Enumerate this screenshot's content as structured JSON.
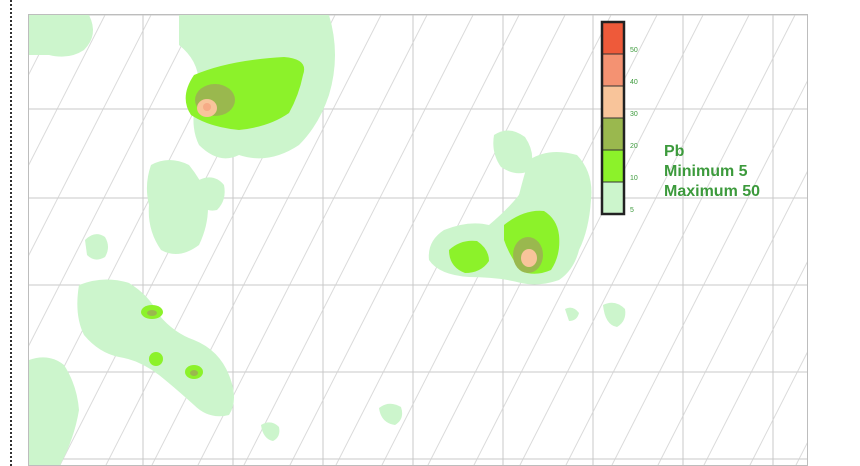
{
  "legend": {
    "title": "Pb",
    "minimum_text": "Minimum 5",
    "maximum_text": "Maximum 50",
    "levels": [
      {
        "value": "50",
        "color": "#ee5a3a"
      },
      {
        "value": "40",
        "color": "#f49272"
      },
      {
        "value": "30",
        "color": "#f8c49a"
      },
      {
        "value": "20",
        "color": "#9ab84e"
      },
      {
        "value": "10",
        "color": "#8cf22a"
      },
      {
        "value": "5",
        "color": "#ccf5cc"
      }
    ]
  },
  "colors": {
    "base_area": "#ccf5cc",
    "label_green": "#3c9a3c",
    "grid": "#c8c8c8"
  }
}
